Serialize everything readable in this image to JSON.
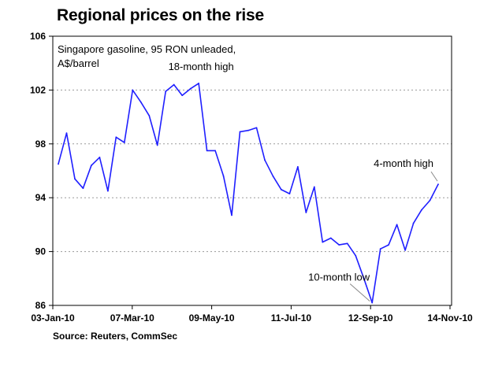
{
  "chart_data": {
    "type": "line",
    "title": "Regional prices on the rise",
    "subtitle": [
      "Singapore gasoline, 95 RON unleaded,",
      "A$/barrel"
    ],
    "source": "Source: Reuters, CommSec",
    "x_labels": [
      "03-Jan-10",
      "07-Mar-10",
      "09-May-10",
      "11-Jul-10",
      "12-Sep-10",
      "14-Nov-10"
    ],
    "ylim": [
      86,
      106
    ],
    "y_ticks": [
      86,
      90,
      94,
      98,
      102,
      106
    ],
    "grid": true,
    "series": [
      {
        "color": "#1f1fff",
        "values": [
          96.5,
          98.8,
          95.4,
          94.7,
          96.4,
          97.0,
          94.5,
          98.5,
          98.1,
          102.0,
          101.1,
          100.1,
          97.9,
          101.9,
          102.4,
          101.6,
          102.1,
          102.5,
          97.5,
          97.5,
          95.6,
          92.7,
          98.9,
          99.0,
          99.2,
          96.8,
          95.6,
          94.6,
          94.3,
          96.3,
          92.9,
          94.8,
          90.7,
          91.0,
          90.5,
          90.6,
          89.7,
          88.0,
          86.2,
          90.2,
          90.5,
          92.0,
          90.1,
          92.1,
          93.1,
          93.8,
          95.0
        ]
      }
    ],
    "annotations": [
      {
        "text": "18-month high",
        "target_index": 17
      },
      {
        "text": "4-month high",
        "target_index": 46
      },
      {
        "text": "10-month low",
        "target_index": 38
      }
    ]
  }
}
